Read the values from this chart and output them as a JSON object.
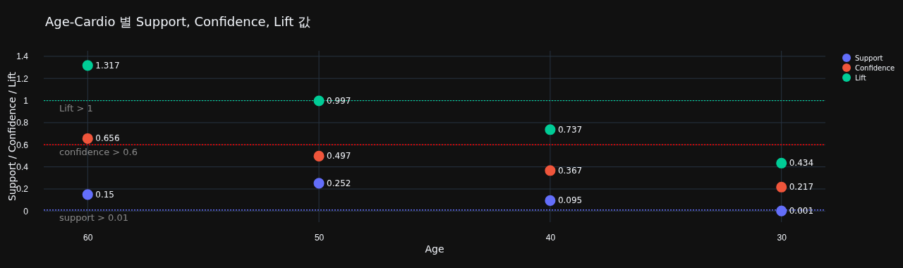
{
  "chart_data": {
    "type": "scatter",
    "title": "Age-Cardio 별 Support, Confidence, Lift 값",
    "xlabel": "Age",
    "ylabel": "Support / Confidence / Lift",
    "categories": [
      "60",
      "50",
      "40",
      "30"
    ],
    "series": [
      {
        "name": "Support",
        "color": "#636efa",
        "values": [
          0.15,
          0.252,
          0.095,
          0.001
        ]
      },
      {
        "name": "Confidence",
        "color": "#ef553b",
        "values": [
          0.656,
          0.497,
          0.367,
          0.217
        ]
      },
      {
        "name": "Lift",
        "color": "#00cc96",
        "values": [
          1.317,
          0.997,
          0.737,
          0.434
        ]
      }
    ],
    "ylim": [
      -0.1,
      1.45
    ],
    "yticks": [
      0,
      0.2,
      0.4,
      0.6,
      0.8,
      1,
      1.2,
      1.4
    ],
    "ref_lines": [
      {
        "axis": "y",
        "value": 1,
        "label": "Lift > 1",
        "color": "#00cc96",
        "line_style": "dotted"
      },
      {
        "axis": "y",
        "value": 0.6,
        "label": "confidence > 0.6",
        "color": "#ff0000",
        "line_style": "dotted"
      },
      {
        "axis": "y",
        "value": 0.01,
        "label": "support > 0.01",
        "color": "#636efa",
        "line_style": "dotted"
      }
    ],
    "data_labels": true,
    "grid": true,
    "legend": "top right",
    "marker": "circle"
  }
}
